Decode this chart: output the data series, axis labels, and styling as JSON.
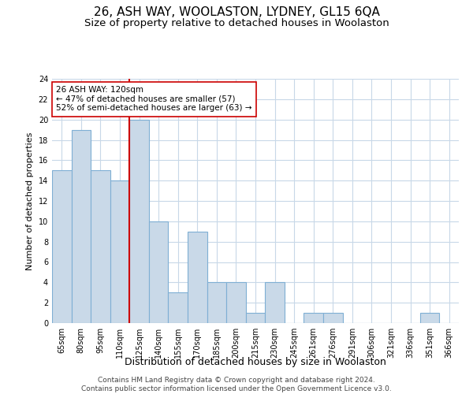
{
  "title": "26, ASH WAY, WOOLASTON, LYDNEY, GL15 6QA",
  "subtitle": "Size of property relative to detached houses in Woolaston",
  "xlabel": "Distribution of detached houses by size in Woolaston",
  "ylabel": "Number of detached properties",
  "categories": [
    "65sqm",
    "80sqm",
    "95sqm",
    "110sqm",
    "125sqm",
    "140sqm",
    "155sqm",
    "170sqm",
    "185sqm",
    "200sqm",
    "215sqm",
    "230sqm",
    "245sqm",
    "261sqm",
    "276sqm",
    "291sqm",
    "306sqm",
    "321sqm",
    "336sqm",
    "351sqm",
    "366sqm"
  ],
  "values": [
    15,
    19,
    15,
    14,
    20,
    10,
    3,
    9,
    4,
    4,
    1,
    4,
    0,
    1,
    1,
    0,
    0,
    0,
    0,
    1,
    0
  ],
  "bar_color": "#c9d9e8",
  "bar_edge_color": "#7fafd4",
  "vline_color": "#cc0000",
  "annotation_text": "26 ASH WAY: 120sqm\n← 47% of detached houses are smaller (57)\n52% of semi-detached houses are larger (63) →",
  "annotation_box_color": "#ffffff",
  "annotation_box_edge_color": "#cc0000",
  "ylim": [
    0,
    24
  ],
  "yticks": [
    0,
    2,
    4,
    6,
    8,
    10,
    12,
    14,
    16,
    18,
    20,
    22,
    24
  ],
  "footer": "Contains HM Land Registry data © Crown copyright and database right 2024.\nContains public sector information licensed under the Open Government Licence v3.0.",
  "title_fontsize": 11,
  "subtitle_fontsize": 9.5,
  "xlabel_fontsize": 9,
  "ylabel_fontsize": 8,
  "tick_fontsize": 7,
  "annotation_fontsize": 7.5,
  "footer_fontsize": 6.5,
  "background_color": "#ffffff",
  "grid_color": "#c8d8e8"
}
